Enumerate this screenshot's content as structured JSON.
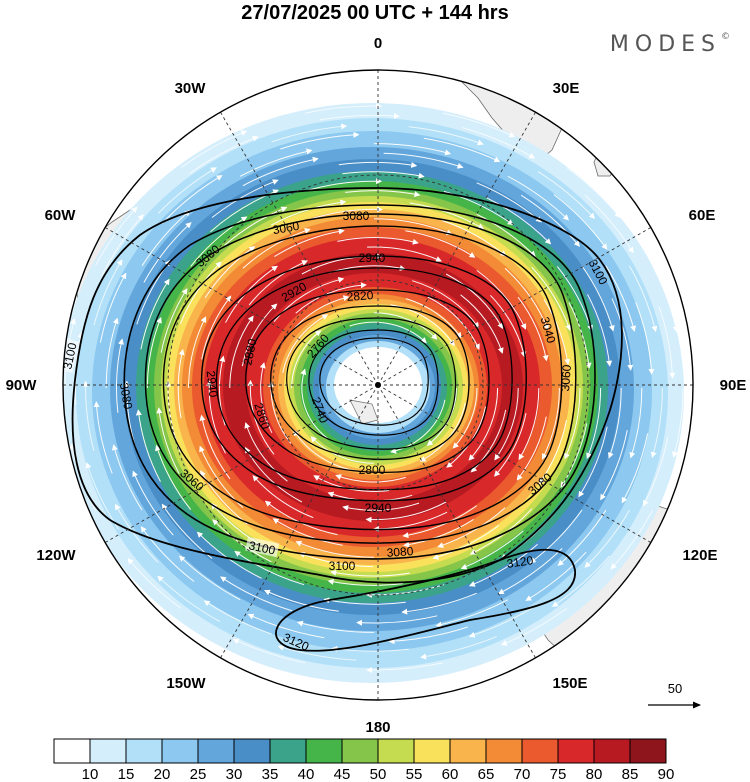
{
  "title": "27/07/2025  00 UTC  + 144 hrs",
  "brand": "MODES",
  "brand_mark": "©",
  "longitude_labels": [
    "0",
    "30E",
    "60E",
    "90E",
    "120E",
    "150E",
    "180",
    "150W",
    "120W",
    "90W",
    "60W",
    "30W"
  ],
  "contour_labels": {
    "c3120": "3120",
    "c3100": "3100",
    "c3080": "3080",
    "c3060": "3060",
    "c3040": "3040",
    "c2940": "2940",
    "c2920": "2920",
    "c2880": "2880",
    "c2860": "2860",
    "c2820": "2820",
    "c2800": "2800",
    "c2760": "2760",
    "c2740": "2740"
  },
  "reference_vector": "50",
  "colorbar": {
    "labels": [
      "10",
      "15",
      "20",
      "25",
      "30",
      "35",
      "40",
      "45",
      "50",
      "55",
      "60",
      "65",
      "70",
      "75",
      "80",
      "85",
      "90"
    ],
    "colors": [
      "#ffffff",
      "#d4eefc",
      "#b2e0f8",
      "#8cc8ef",
      "#62a6dc",
      "#4a8ec8",
      "#3aa38a",
      "#45b54a",
      "#84c54a",
      "#c6dc50",
      "#fae15c",
      "#f9b44c",
      "#f28a36",
      "#ea5a2e",
      "#d8282a",
      "#b81a22",
      "#8e151c"
    ]
  }
}
